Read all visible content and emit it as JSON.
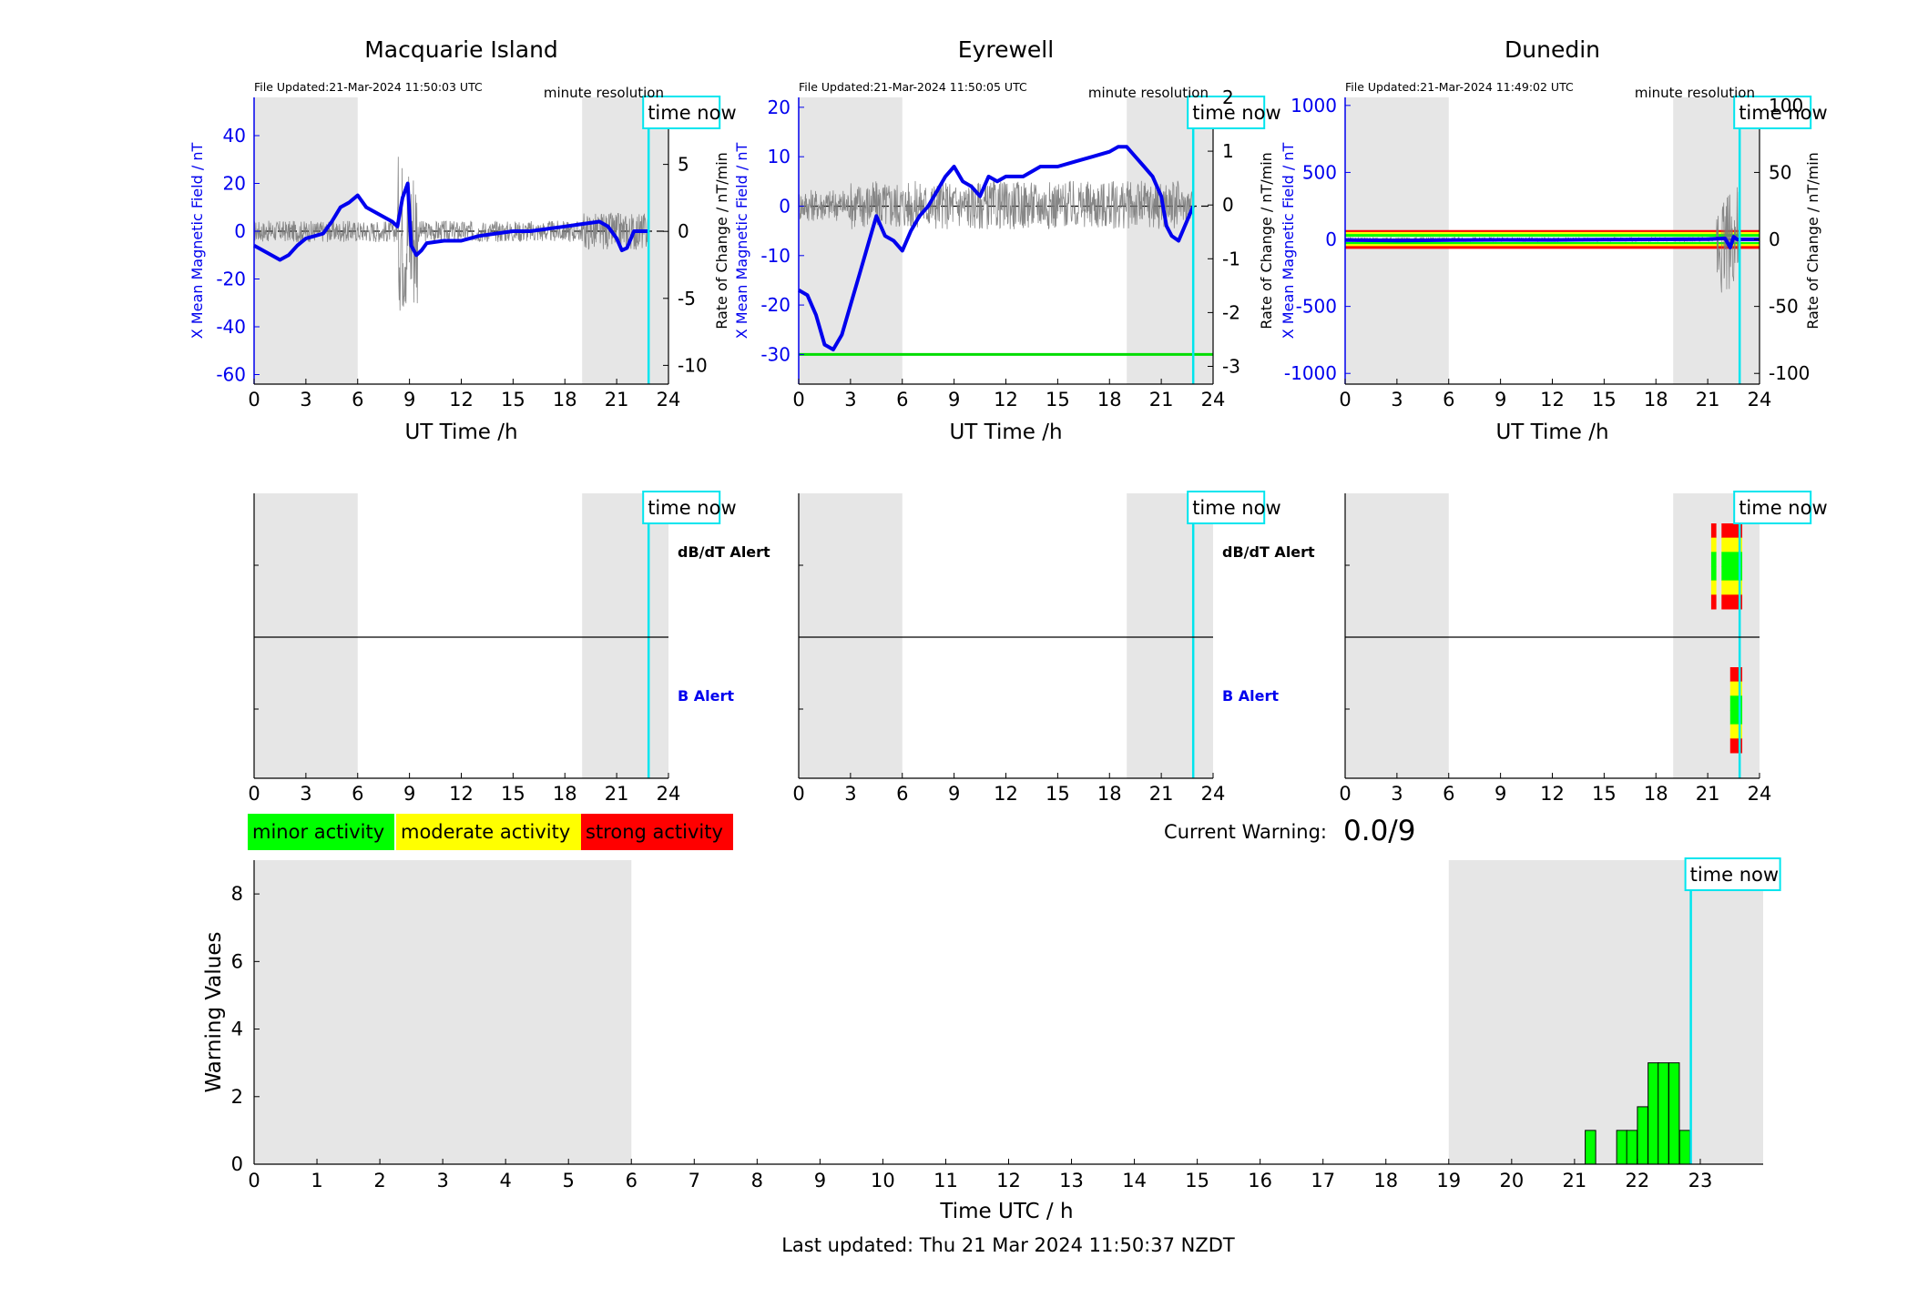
{
  "common": {
    "time_now_label": "time now",
    "x_label": "UT Time /h",
    "x_ticks": [
      0,
      3,
      6,
      9,
      12,
      15,
      18,
      21,
      24
    ],
    "time_now_hour": 22.85,
    "night_shading_hours": [
      [
        0,
        6
      ],
      [
        19,
        24
      ]
    ],
    "resolution_label": "minute resolution",
    "left_ylabel": "X Mean Magnetic Field / nT",
    "right_ylabel": "Rate of Change / nT/min",
    "dbdt_alert_label": "dB/dT Alert",
    "b_alert_label": "B Alert"
  },
  "legend": [
    {
      "label": "minor activity",
      "color": "#00ff00"
    },
    {
      "label": "moderate activity",
      "color": "#ffff00"
    },
    {
      "label": "strong activity",
      "color": "#ff0000"
    }
  ],
  "current_warning": {
    "label": "Current Warning:",
    "value": "0.0/9"
  },
  "footer": {
    "last_updated": "Last updated: Thu 21 Mar 2024 11:50:37 NZDT"
  },
  "chart_data": [
    {
      "type": "line",
      "station": "Macquarie Island",
      "file_updated": "File Updated:21-Mar-2024 11:50:03 UTC",
      "ylim_left": [
        -64,
        56
      ],
      "yticks_left": [
        -60,
        -40,
        -20,
        0,
        20,
        40
      ],
      "ylim_right": [
        -11.4,
        10
      ],
      "yticks_right": [
        -10,
        -5,
        0,
        5
      ],
      "threshold_lines": [],
      "series": [
        {
          "axis": "left",
          "x": [
            0,
            0.5,
            1,
            1.5,
            2,
            2.5,
            3,
            3.5,
            4,
            4.5,
            5,
            5.5,
            6,
            6.5,
            7,
            7.5,
            8,
            8.3,
            8.6,
            8.9,
            9.1,
            9.4,
            9.7,
            10,
            11,
            12,
            13,
            14,
            15,
            16,
            17,
            18,
            19,
            20,
            20.5,
            21,
            21.3,
            21.6,
            22,
            22.3,
            22.85
          ],
          "y": [
            -6,
            -8,
            -10,
            -12,
            -10,
            -6,
            -3,
            -2,
            -1,
            4,
            10,
            12,
            15,
            10,
            8,
            6,
            4,
            2,
            14,
            20,
            -6,
            -10,
            -8,
            -5,
            -4,
            -4,
            -2,
            -1,
            0,
            0,
            1,
            2,
            3,
            4,
            2,
            -3,
            -8,
            -7,
            0,
            0,
            0
          ]
        }
      ],
      "alerts": []
    },
    {
      "type": "line",
      "station": "Eyrewell",
      "file_updated": "File Updated:21-Mar-2024 11:50:05 UTC",
      "ylim_left": [
        -36,
        22
      ],
      "yticks_left": [
        -30,
        -20,
        -10,
        0,
        10,
        20
      ],
      "ylim_right": [
        -3.33,
        2
      ],
      "yticks_right": [
        -3,
        -2,
        -1,
        0,
        1,
        2
      ],
      "threshold_lines": [
        {
          "axis": "left",
          "y": -30,
          "color": "#00dd00"
        }
      ],
      "series": [
        {
          "axis": "left",
          "x": [
            0,
            0.5,
            1,
            1.5,
            2,
            2.5,
            3,
            3.5,
            4,
            4.5,
            5,
            5.5,
            6,
            6.5,
            7,
            7.5,
            8,
            8.5,
            9,
            9.5,
            10,
            10.5,
            11,
            11.5,
            12,
            13,
            14,
            15,
            16,
            17,
            18,
            18.5,
            19,
            19.5,
            20,
            20.5,
            21,
            21.3,
            21.6,
            22,
            22.85
          ],
          "y": [
            -17,
            -18,
            -22,
            -28,
            -29,
            -26,
            -20,
            -14,
            -8,
            -2,
            -6,
            -7,
            -9,
            -5,
            -2,
            0,
            3,
            6,
            8,
            5,
            4,
            2,
            6,
            5,
            6,
            6,
            8,
            8,
            9,
            10,
            11,
            12,
            12,
            10,
            8,
            6,
            2,
            -4,
            -6,
            -7,
            0
          ]
        }
      ],
      "alerts": []
    },
    {
      "type": "line",
      "station": "Dunedin",
      "file_updated": "File Updated:21-Mar-2024 11:49:02 UTC",
      "ylim_left": [
        -1080,
        1060
      ],
      "yticks_left": [
        -1000,
        -500,
        0,
        500,
        1000
      ],
      "ylim_right": [
        -108,
        106
      ],
      "yticks_right": [
        -100,
        -50,
        0,
        50,
        100
      ],
      "threshold_lines": [
        {
          "axis": "left",
          "y": 60,
          "color": "#ff0000"
        },
        {
          "axis": "left",
          "y": 45,
          "color": "#ffff00"
        },
        {
          "axis": "left",
          "y": 30,
          "color": "#00ff00"
        },
        {
          "axis": "left",
          "y": -30,
          "color": "#00ff00"
        },
        {
          "axis": "left",
          "y": -45,
          "color": "#ffff00"
        },
        {
          "axis": "left",
          "y": -60,
          "color": "#ff0000"
        }
      ],
      "series": [
        {
          "axis": "left",
          "x": [
            0,
            3,
            6,
            9,
            12,
            15,
            18,
            21,
            22,
            22.3,
            22.5,
            22.7,
            22.85,
            24
          ],
          "y": [
            -5,
            -8,
            -5,
            -3,
            -4,
            -2,
            0,
            2,
            8,
            -60,
            20,
            0,
            0,
            0
          ]
        }
      ],
      "alerts": [
        {
          "panel": "dbdt",
          "x_start": 21.2,
          "x_end": 21.5,
          "colors": [
            "#ff0000",
            "#ffff00",
            "#00ff00",
            "#00ff00",
            "#ffff00",
            "#ff0000"
          ]
        },
        {
          "panel": "dbdt",
          "x_start": 21.8,
          "x_end": 23.0,
          "colors": [
            "#ff0000",
            "#ffff00",
            "#00ff00",
            "#00ff00",
            "#ffff00",
            "#ff0000"
          ]
        },
        {
          "panel": "b",
          "x_start": 22.3,
          "x_end": 23.0,
          "colors": [
            "#ff0000",
            "#ffff00",
            "#00ff00",
            "#00ff00",
            "#ffff00",
            "#ff0000"
          ]
        }
      ]
    },
    {
      "type": "bar",
      "title": "",
      "xlabel": "Time UTC / h",
      "ylabel": "Warning Values",
      "xlim": [
        0,
        24
      ],
      "ylim": [
        0,
        9
      ],
      "x_ticks": [
        0,
        1,
        2,
        3,
        4,
        5,
        6,
        7,
        8,
        9,
        10,
        11,
        12,
        13,
        14,
        15,
        16,
        17,
        18,
        19,
        20,
        21,
        22,
        23
      ],
      "y_ticks": [
        0,
        2,
        4,
        6,
        8
      ],
      "shading_hours": [
        [
          0,
          6
        ],
        [
          19,
          24
        ]
      ],
      "bar_width_hours": 0.1667,
      "bar_color": "#00ff00",
      "bars": [
        {
          "x": 21.17,
          "value": 1
        },
        {
          "x": 21.67,
          "value": 1
        },
        {
          "x": 21.83,
          "value": 1
        },
        {
          "x": 22.0,
          "value": 1.7
        },
        {
          "x": 22.17,
          "value": 3
        },
        {
          "x": 22.33,
          "value": 3
        },
        {
          "x": 22.5,
          "value": 3
        },
        {
          "x": 22.67,
          "value": 1
        }
      ]
    }
  ]
}
